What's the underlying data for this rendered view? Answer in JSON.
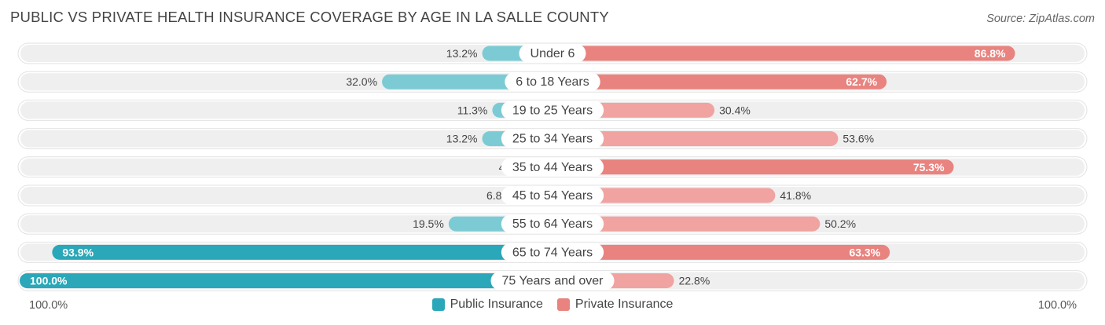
{
  "header": {
    "title": "PUBLIC VS PRIVATE HEALTH INSURANCE COVERAGE BY AGE IN LA SALLE COUNTY",
    "source": "Source: ZipAtlas.com"
  },
  "axis": {
    "left_label": "100.0%",
    "right_label": "100.0%"
  },
  "legend": [
    {
      "label": "Public Insurance",
      "color": "#2aa7b8"
    },
    {
      "label": "Private Insurance",
      "color": "#e8837f"
    }
  ],
  "colors": {
    "public_light": "#7ccbd4",
    "public_dark": "#2aa7b8",
    "private_light": "#f0a3a1",
    "private_dark": "#e8837f",
    "track": "#efefef"
  },
  "chart_data": {
    "type": "bar",
    "orientation": "horizontal-diverging",
    "title": "PUBLIC VS PRIVATE HEALTH INSURANCE COVERAGE BY AGE IN LA SALLE COUNTY",
    "categories": [
      "Under 6",
      "6 to 18 Years",
      "19 to 25 Years",
      "25 to 34 Years",
      "35 to 44 Years",
      "45 to 54 Years",
      "55 to 64 Years",
      "65 to 74 Years",
      "75 Years and over"
    ],
    "series": [
      {
        "name": "Public Insurance",
        "values": [
          13.2,
          32.0,
          11.3,
          13.2,
          4.5,
          6.8,
          19.5,
          93.9,
          100.0
        ],
        "labels": [
          "13.2%",
          "32.0%",
          "11.3%",
          "13.2%",
          "4.5%",
          "6.8%",
          "19.5%",
          "93.9%",
          "100.0%"
        ]
      },
      {
        "name": "Private Insurance",
        "values": [
          86.8,
          62.7,
          30.4,
          53.6,
          75.3,
          41.8,
          50.2,
          63.3,
          22.8
        ],
        "labels": [
          "86.8%",
          "62.7%",
          "30.4%",
          "53.6%",
          "75.3%",
          "41.8%",
          "50.2%",
          "63.3%",
          "22.8%"
        ]
      }
    ],
    "xlim": [
      -100,
      100
    ],
    "legend_position": "bottom-center"
  }
}
